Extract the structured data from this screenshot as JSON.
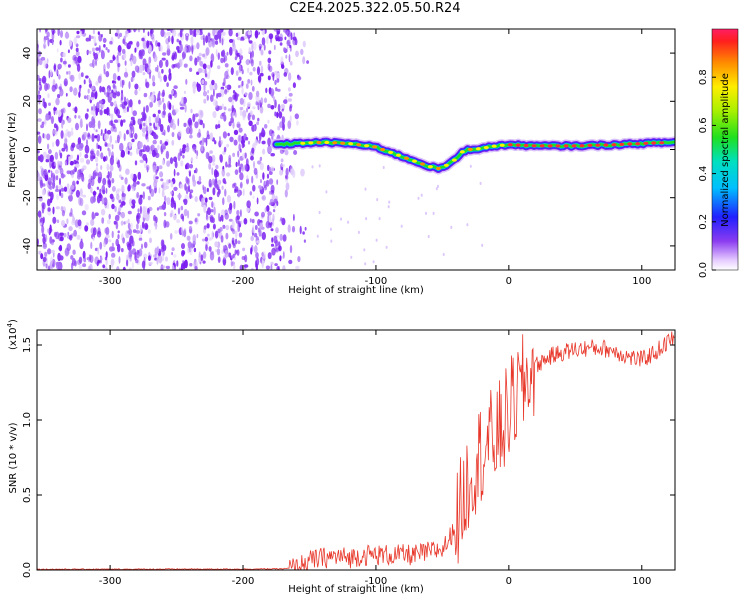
{
  "title": "C2E4.2025.322.05.50.R24",
  "chart_data": [
    {
      "type": "heatmap",
      "xlabel": "Height of straight line (km)",
      "ylabel": "Frequency (Hz)",
      "xlim": [
        -355,
        125
      ],
      "ylim": [
        -50,
        50
      ],
      "xticks": [
        -300,
        -200,
        -100,
        0,
        100
      ],
      "yticks": [
        -40,
        -20,
        0,
        20,
        40
      ],
      "colorbar": {
        "label": "Normalized spectral amplitude",
        "range": [
          0,
          1
        ],
        "ticks": [
          0.0,
          0.2,
          0.4,
          0.6,
          0.8
        ],
        "tick_labels": [
          "0.0",
          "0.2",
          "0.4",
          "0.6",
          "0.8"
        ]
      },
      "signal_track": {
        "x": [
          -175,
          -160,
          -140,
          -120,
          -100,
          -90,
          -80,
          -70,
          -60,
          -52,
          -45,
          -40,
          -35,
          -30,
          -20,
          -10,
          0,
          20,
          50,
          80,
          100,
          125
        ],
        "frequency": [
          2,
          2.5,
          3,
          2.5,
          1,
          -1,
          -3,
          -5,
          -7,
          -8,
          -6,
          -4,
          -1,
          0,
          0.5,
          1.5,
          2,
          1.5,
          1.5,
          2,
          2.5,
          3
        ]
      },
      "noise_region_x": [
        -355,
        -160
      ]
    },
    {
      "type": "line",
      "xlabel": "Height of straight line (km)",
      "ylabel": "SNR (10 * v/v)",
      "scale_label": "(x10",
      "scale_exponent": "4",
      "scale_suffix": ")",
      "xlim": [
        -355,
        125
      ],
      "ylim": [
        0,
        1.6
      ],
      "xticks": [
        -300,
        -200,
        -100,
        0,
        100
      ],
      "yticks": [
        0.0,
        0.5,
        1.0,
        1.5
      ],
      "ytick_labels": [
        "0.0",
        "0.5",
        "1.0",
        "1.5"
      ],
      "color": "#e8392c",
      "series": [
        {
          "name": "SNR",
          "x": [
            -355,
            -300,
            -250,
            -200,
            -170,
            -160,
            -150,
            -140,
            -130,
            -120,
            -110,
            -100,
            -90,
            -80,
            -70,
            -60,
            -50,
            -45,
            -40,
            -35,
            -30,
            -25,
            -20,
            -15,
            -10,
            -5,
            0,
            5,
            10,
            15,
            20,
            30,
            40,
            50,
            60,
            70,
            80,
            90,
            100,
            110,
            120,
            125
          ],
          "values": [
            0.005,
            0.005,
            0.006,
            0.006,
            0.008,
            0.015,
            0.06,
            0.08,
            0.09,
            0.08,
            0.1,
            0.1,
            0.1,
            0.1,
            0.1,
            0.12,
            0.14,
            0.2,
            0.3,
            0.45,
            0.62,
            0.72,
            0.8,
            0.85,
            0.88,
            0.95,
            1.05,
            1.15,
            1.22,
            1.3,
            1.36,
            1.42,
            1.45,
            1.47,
            1.48,
            1.48,
            1.46,
            1.42,
            1.4,
            1.45,
            1.52,
            1.56
          ]
        }
      ]
    }
  ]
}
